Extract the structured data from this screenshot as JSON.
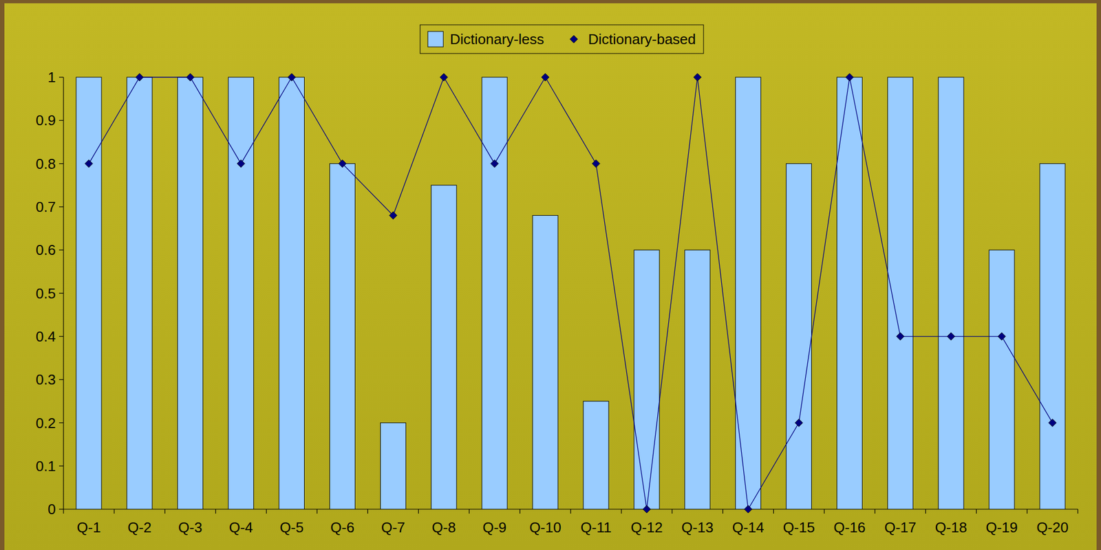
{
  "chart_data": {
    "type": "bar",
    "categories": [
      "Q-1",
      "Q-2",
      "Q-3",
      "Q-4",
      "Q-5",
      "Q-6",
      "Q-7",
      "Q-8",
      "Q-9",
      "Q-10",
      "Q-11",
      "Q-12",
      "Q-13",
      "Q-14",
      "Q-15",
      "Q-16",
      "Q-17",
      "Q-18",
      "Q-19",
      "Q-20"
    ],
    "series": [
      {
        "name": "Dictionary-less",
        "type": "bar",
        "color": "#99ccff",
        "values": [
          1,
          1,
          1,
          1,
          1,
          0.8,
          0.2,
          0.75,
          1,
          0.68,
          0.25,
          0.6,
          0.6,
          1,
          0.8,
          1,
          1,
          1,
          0.6,
          0.8
        ]
      },
      {
        "name": "Dictionary-based",
        "type": "line",
        "color": "#000080",
        "marker": "diamond",
        "line_style": "solid",
        "values": [
          0.8,
          1,
          1,
          0.8,
          1,
          0.8,
          0.68,
          1,
          0.8,
          1,
          0.8,
          0,
          1,
          0,
          0.2,
          1,
          0.4,
          0.4,
          0.4,
          0.2
        ]
      }
    ],
    "ylim": [
      0,
      1
    ],
    "yticks": [
      0,
      0.1,
      0.2,
      0.3,
      0.4,
      0.5,
      0.6,
      0.7,
      0.8,
      0.9,
      1
    ],
    "grid": false,
    "legend": "top"
  }
}
